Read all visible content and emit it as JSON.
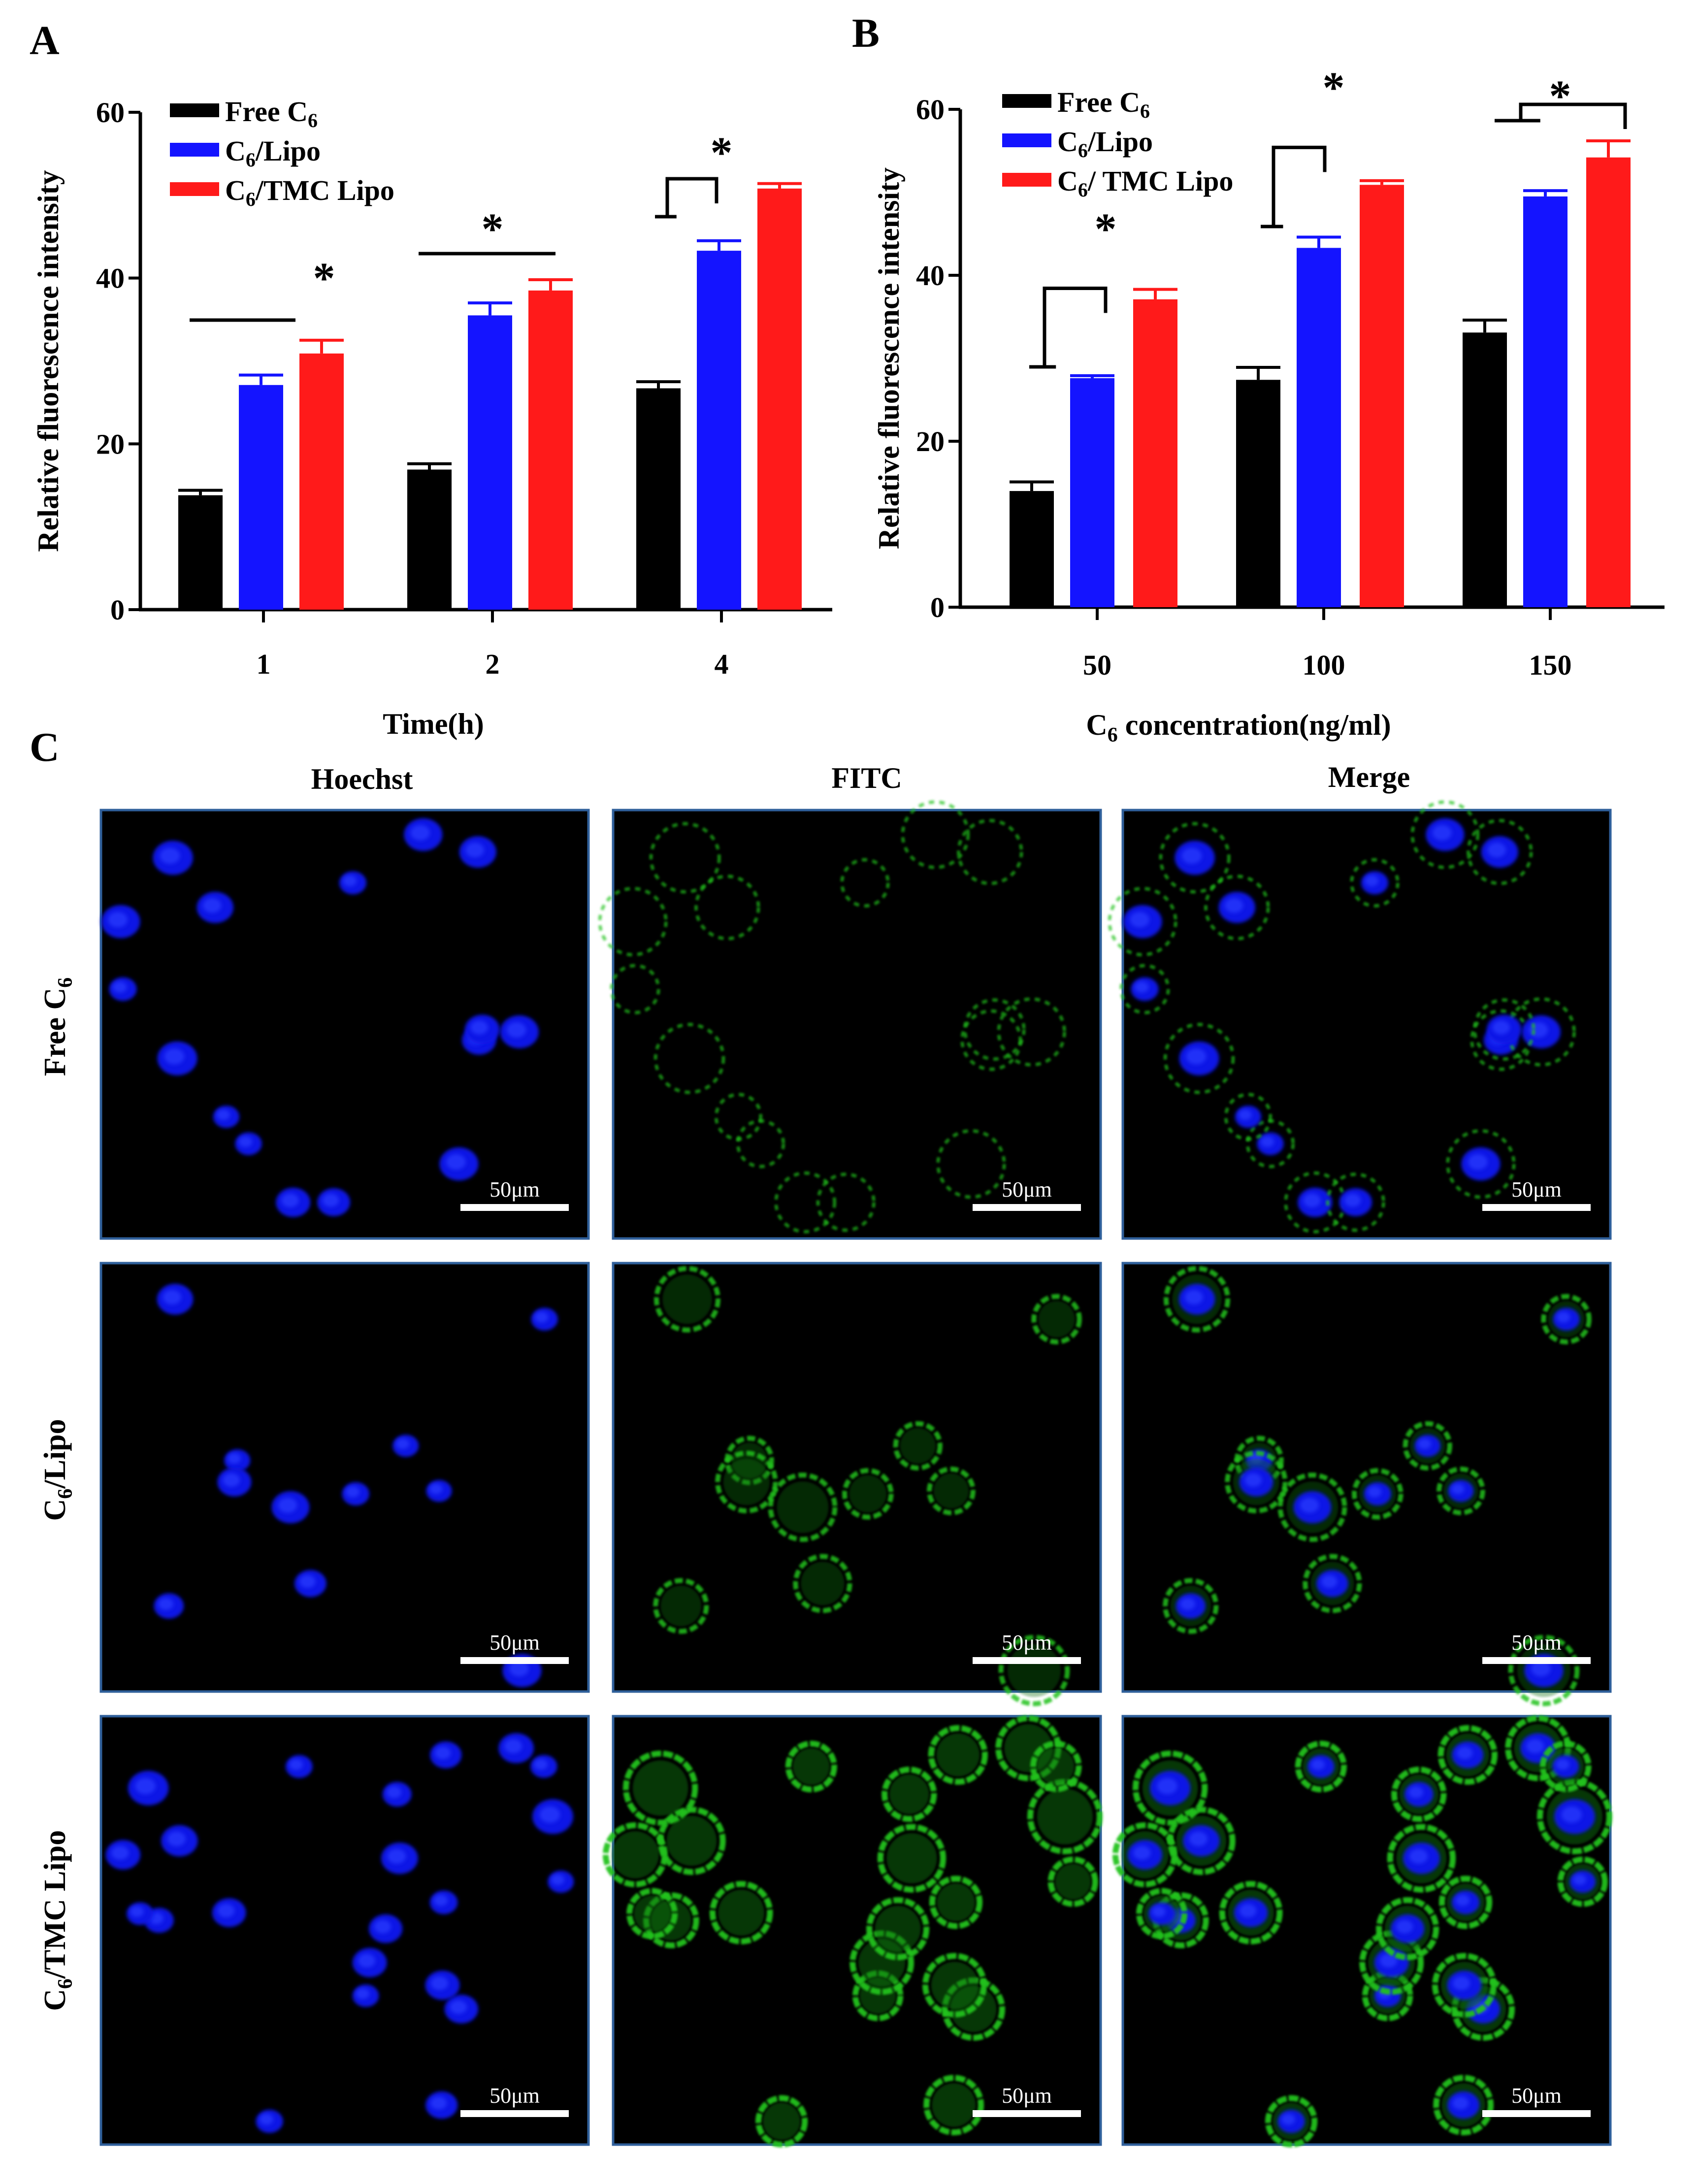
{
  "panels": {
    "a": "A",
    "b": "B",
    "c": "C"
  },
  "colors": {
    "free": "#000000",
    "lipo": "#1414ff",
    "tmc": "#ff1a1a"
  },
  "chart_data": [
    {
      "id": "A",
      "type": "bar",
      "title": "",
      "xlabel": "Time(h)",
      "ylabel": "Relative fluorescence intensity",
      "ylim": [
        0,
        60
      ],
      "yticks": [
        0,
        20,
        40,
        60
      ],
      "categories": [
        "1",
        "2",
        "4"
      ],
      "series": [
        {
          "name": "Free C6",
          "legend_main": "Free C",
          "legend_sub": "6",
          "legend_rest": "",
          "values": [
            13.8,
            16.9,
            26.7
          ],
          "errors": [
            0.6,
            0.7,
            0.8
          ]
        },
        {
          "name": "C6/Lipo",
          "legend_main": "C",
          "legend_sub": "6",
          "legend_rest": "/Lipo",
          "values": [
            27.1,
            35.5,
            43.3
          ],
          "errors": [
            1.2,
            1.5,
            1.2
          ]
        },
        {
          "name": "C6/TMC Lipo",
          "legend_main": "C",
          "legend_sub": "6",
          "legend_rest": "/TMC Lipo",
          "values": [
            30.9,
            38.5,
            50.8
          ],
          "errors": [
            1.6,
            1.3,
            0.6
          ]
        }
      ],
      "annotations": [
        "*",
        "*",
        "*"
      ],
      "legend": "top-left"
    },
    {
      "id": "B",
      "type": "bar",
      "title": "",
      "xlabel_main": "C",
      "xlabel_sub": "6",
      "xlabel_rest": " concentration(ng/ml)",
      "ylabel": "Relative fluorescence intensity",
      "ylim": [
        0,
        60
      ],
      "yticks": [
        0,
        20,
        40,
        60
      ],
      "categories": [
        "50",
        "100",
        "150"
      ],
      "series": [
        {
          "name": "Free C6",
          "legend_main": "Free C",
          "legend_sub": "6",
          "legend_rest": "",
          "values": [
            14.0,
            27.4,
            33.1
          ],
          "errors": [
            1.1,
            1.5,
            1.5
          ]
        },
        {
          "name": "C6/Lipo",
          "legend_main": "C",
          "legend_sub": "6",
          "legend_rest": "/Lipo",
          "values": [
            27.6,
            43.3,
            49.5
          ],
          "errors": [
            0.3,
            1.3,
            0.7
          ]
        },
        {
          "name": "C6/ TMC Lipo",
          "legend_main": "C",
          "legend_sub": "6",
          "legend_rest": "/ TMC Lipo",
          "values": [
            37.1,
            50.9,
            54.2
          ],
          "errors": [
            1.2,
            0.5,
            2.0
          ]
        }
      ],
      "annotations": [
        "*",
        "*",
        "*"
      ],
      "legend": "top-left"
    }
  ],
  "micrographs": {
    "columns": [
      "Hoechst",
      "FITC",
      "Merge"
    ],
    "rows": [
      {
        "main": "Free C",
        "sub": "6",
        "rest": ""
      },
      {
        "main": "C",
        "sub": "6",
        "rest": "/Lipo"
      },
      {
        "main": "C",
        "sub": "6",
        "rest": "/TMC Lipo"
      }
    ],
    "scale_bar_label": "50μm"
  }
}
